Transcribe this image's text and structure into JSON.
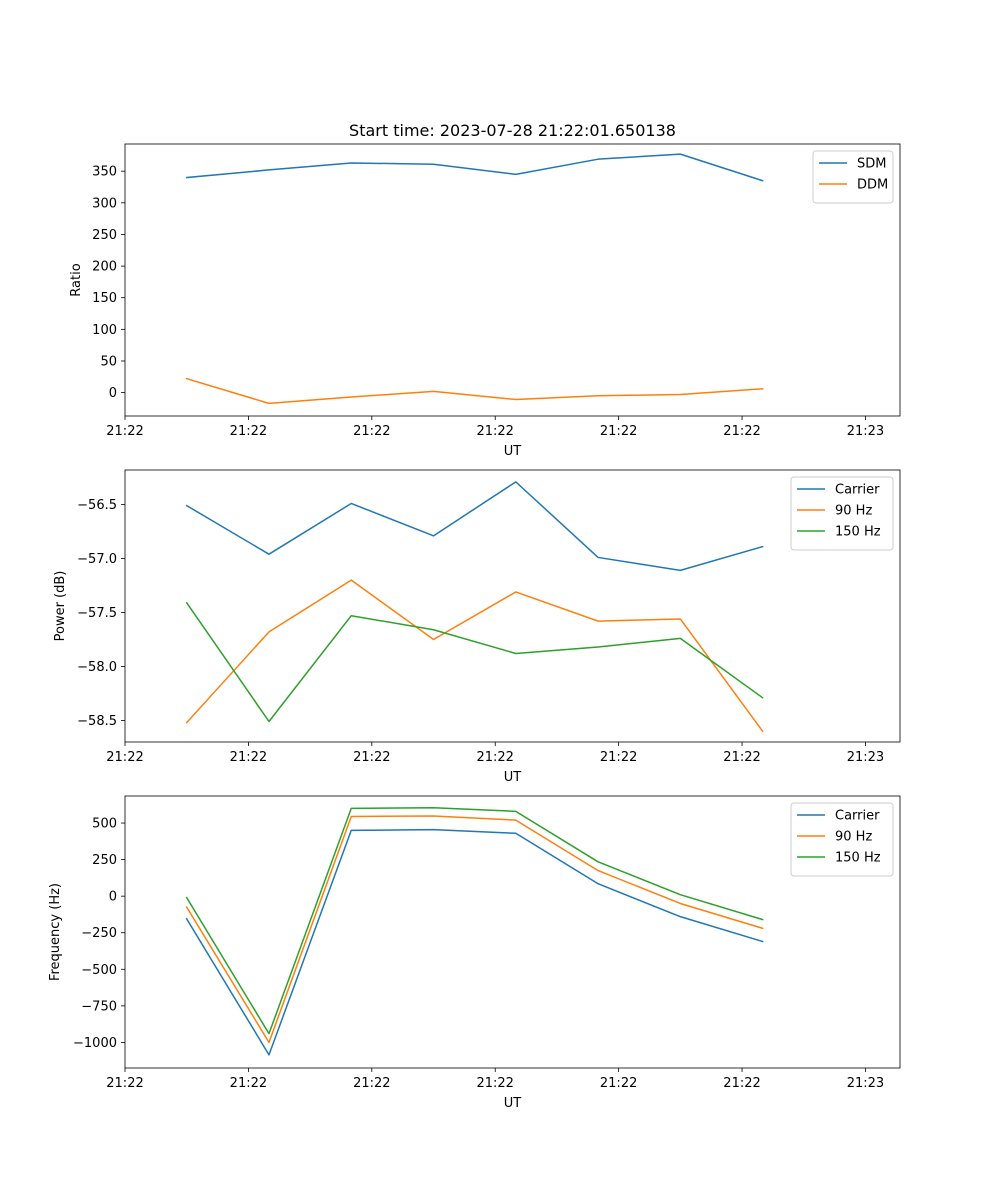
{
  "figure_title": "Start time: 2023-07-28 21:22:01.650138",
  "chart_data": [
    {
      "type": "line",
      "xlabel": "UT",
      "ylabel": "Ratio",
      "x": [
        0,
        1,
        2,
        3,
        4,
        5,
        6,
        7
      ],
      "xlim": [
        -0.75,
        8.67
      ],
      "xticks": [
        -0.75,
        0.75,
        2.25,
        3.75,
        5.25,
        6.75,
        8.25
      ],
      "xtick_labels": [
        "21:22",
        "21:22",
        "21:22",
        "21:22",
        "21:22",
        "21:22",
        "21:23"
      ],
      "ylim": [
        -37,
        393
      ],
      "yticks": [
        0,
        50,
        100,
        150,
        200,
        250,
        300,
        350
      ],
      "ytick_labels": [
        "0",
        "50",
        "100",
        "150",
        "200",
        "250",
        "300",
        "350"
      ],
      "legend": "top-right",
      "series": [
        {
          "name": "SDM",
          "color": "#1f77b4",
          "values": [
            340,
            352,
            363,
            361,
            345,
            369,
            377,
            335
          ]
        },
        {
          "name": "DDM",
          "color": "#ff7f0e",
          "values": [
            22,
            -17,
            -7,
            2,
            -11,
            -5,
            -3,
            6
          ]
        }
      ]
    },
    {
      "type": "line",
      "xlabel": "UT",
      "ylabel": "Power (dB)",
      "x": [
        0,
        1,
        2,
        3,
        4,
        5,
        6,
        7
      ],
      "xlim": [
        -0.75,
        8.67
      ],
      "xticks": [
        -0.75,
        0.75,
        2.25,
        3.75,
        5.25,
        6.75,
        8.25
      ],
      "xtick_labels": [
        "21:22",
        "21:22",
        "21:22",
        "21:22",
        "21:22",
        "21:22",
        "21:23"
      ],
      "ylim": [
        -58.7,
        -56.18
      ],
      "yticks": [
        -58.5,
        -58.0,
        -57.5,
        -57.0,
        -56.5
      ],
      "ytick_labels": [
        "−58.5",
        "−58.0",
        "−57.5",
        "−57.0",
        "−56.5"
      ],
      "legend": "top-right",
      "series": [
        {
          "name": "Carrier",
          "color": "#1f77b4",
          "values": [
            -56.51,
            -56.96,
            -56.49,
            -56.79,
            -56.29,
            -56.99,
            -57.11,
            -56.89
          ]
        },
        {
          "name": "90 Hz",
          "color": "#ff7f0e",
          "values": [
            -58.52,
            -57.68,
            -57.2,
            -57.75,
            -57.31,
            -57.58,
            -57.56,
            -58.6
          ]
        },
        {
          "name": "150 Hz",
          "color": "#2ca02c",
          "values": [
            -57.41,
            -58.51,
            -57.53,
            -57.66,
            -57.88,
            -57.82,
            -57.74,
            -58.29
          ]
        }
      ]
    },
    {
      "type": "line",
      "xlabel": "UT",
      "ylabel": "Frequency (Hz)",
      "x": [
        0,
        1,
        2,
        3,
        4,
        5,
        6,
        7
      ],
      "xlim": [
        -0.75,
        8.67
      ],
      "xticks": [
        -0.75,
        0.75,
        2.25,
        3.75,
        5.25,
        6.75,
        8.25
      ],
      "xtick_labels": [
        "21:22",
        "21:22",
        "21:22",
        "21:22",
        "21:22",
        "21:22",
        "21:23"
      ],
      "ylim": [
        -1175,
        685
      ],
      "yticks": [
        -1000,
        -750,
        -500,
        -250,
        0,
        250,
        500
      ],
      "ytick_labels": [
        "−1000",
        "−750",
        "−500",
        "−250",
        "0",
        "250",
        "500"
      ],
      "legend": "top-right",
      "series": [
        {
          "name": "Carrier",
          "color": "#1f77b4",
          "values": [
            -155,
            -1085,
            450,
            455,
            430,
            85,
            -140,
            -310
          ]
        },
        {
          "name": "90 Hz",
          "color": "#ff7f0e",
          "values": [
            -75,
            -1000,
            545,
            548,
            520,
            175,
            -50,
            -220
          ]
        },
        {
          "name": "150 Hz",
          "color": "#2ca02c",
          "values": [
            -10,
            -940,
            600,
            605,
            580,
            235,
            10,
            -160
          ]
        }
      ]
    }
  ]
}
